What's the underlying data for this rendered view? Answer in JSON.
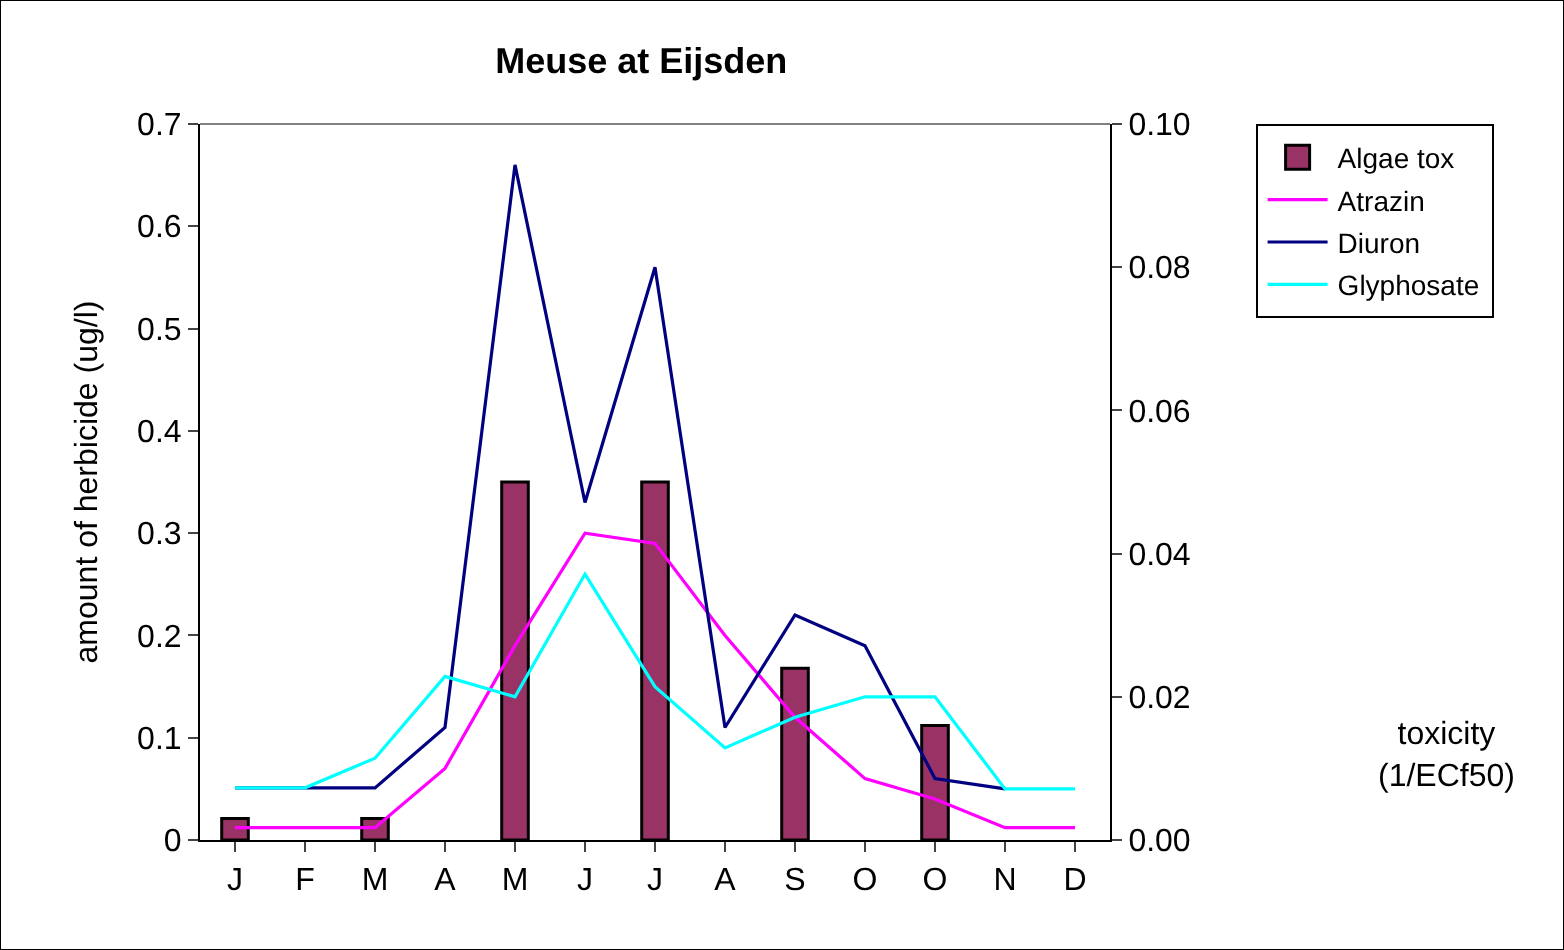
{
  "chart_data": {
    "type": "line",
    "title": "Meuse at Eijsden",
    "ylabel": "amount of herbicide (ug/l)",
    "annotations": [
      "toxicity\n(1/ECf50)"
    ],
    "categories": [
      "J",
      "F",
      "M",
      "A",
      "M",
      "J",
      "J",
      "A",
      "S",
      "O",
      "O",
      "N",
      "D"
    ],
    "series": [
      {
        "name": "Algae tox",
        "type": "bar",
        "axis": "y2",
        "color": "#993366",
        "values": [
          0.003,
          null,
          0.003,
          null,
          0.05,
          null,
          0.05,
          null,
          0.024,
          null,
          0.016,
          null,
          null
        ]
      },
      {
        "name": "Atrazin",
        "color": "#ff00ff",
        "values": [
          0.012,
          0.012,
          0.012,
          0.07,
          0.19,
          0.3,
          0.29,
          0.2,
          0.12,
          0.06,
          0.04,
          0.012,
          0.012
        ]
      },
      {
        "name": "Diuron",
        "color": "#000080",
        "values": [
          0.051,
          0.051,
          0.051,
          0.11,
          0.66,
          0.33,
          0.56,
          0.11,
          0.22,
          0.19,
          0.06,
          0.05,
          null
        ]
      },
      {
        "name": "Glyphosate",
        "color": "#00ffff",
        "values": [
          0.051,
          0.051,
          0.08,
          0.16,
          0.14,
          0.26,
          0.15,
          0.09,
          0.12,
          0.14,
          0.14,
          0.05,
          0.05
        ]
      }
    ],
    "ylim": [
      0,
      0.7
    ],
    "yticks": [
      0,
      0.1,
      0.2,
      0.3,
      0.4,
      0.5,
      0.6,
      0.7
    ],
    "y2lim": [
      0,
      0.1
    ],
    "y2ticks": [
      {
        "value": 0,
        "label": "0.00"
      },
      {
        "value": 0.02,
        "label": "0.02"
      },
      {
        "value": 0.04,
        "label": "0.04"
      },
      {
        "value": 0.06,
        "label": "0.06"
      },
      {
        "value": 0.08,
        "label": "0.08"
      },
      {
        "value": 0.1,
        "label": "0.10"
      }
    ],
    "legend": "top right",
    "marker": "none",
    "line_style": "solid"
  }
}
